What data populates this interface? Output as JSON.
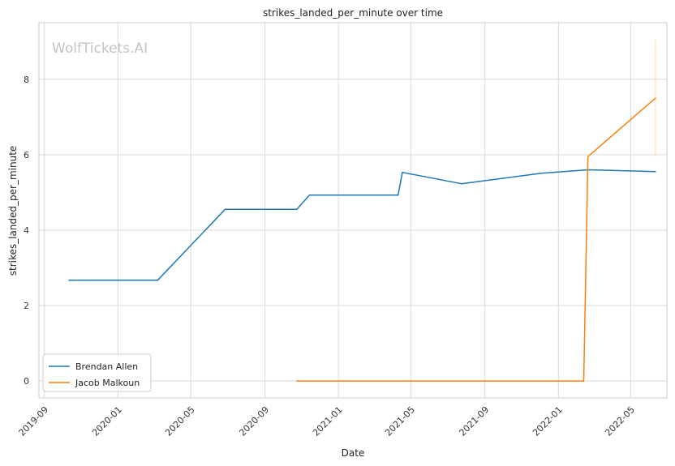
{
  "watermark": "WolfTickets.AI",
  "colors": {
    "series1": "#1f77b4",
    "series2": "#ff7f0e",
    "grid": "#d9d9d9",
    "frame": "#cccccc"
  },
  "chart_data": {
    "type": "line",
    "title": "strikes_landed_per_minute over time",
    "xlabel": "Date",
    "ylabel": "strikes_landed_per_minute",
    "x_ticks": [
      "2019-09",
      "2020-01",
      "2020-05",
      "2020-09",
      "2021-01",
      "2021-05",
      "2021-09",
      "2022-01",
      "2022-05"
    ],
    "y_ticks": [
      0,
      2,
      4,
      6,
      8
    ],
    "xlim": [
      "2019-08-23",
      "2022-06-30"
    ],
    "ylim": [
      -0.45,
      9.5
    ],
    "grid": true,
    "legend_position": "lower-left",
    "series": [
      {
        "name": "Brendan Allen",
        "color": "#1f77b4",
        "points": [
          [
            "2019-10-12",
            2.67
          ],
          [
            "2020-03-07",
            2.67
          ],
          [
            "2020-06-27",
            4.55
          ],
          [
            "2020-10-24",
            4.55
          ],
          [
            "2020-11-14",
            4.93
          ],
          [
            "2021-04-10",
            4.93
          ],
          [
            "2021-04-17",
            5.53
          ],
          [
            "2021-07-24",
            5.23
          ],
          [
            "2021-12-04",
            5.51
          ],
          [
            "2022-02-19",
            5.6
          ],
          [
            "2022-06-11",
            5.55
          ]
        ]
      },
      {
        "name": "Jacob Malkoun",
        "color": "#ff7f0e",
        "points": [
          [
            "2020-10-24",
            0.0
          ],
          [
            "2022-02-12",
            0.0
          ],
          [
            "2022-02-19",
            5.95
          ],
          [
            "2022-06-11",
            7.5
          ]
        ],
        "band": {
          "x": "2022-06-11",
          "low": 5.95,
          "high": 9.05
        }
      }
    ]
  }
}
